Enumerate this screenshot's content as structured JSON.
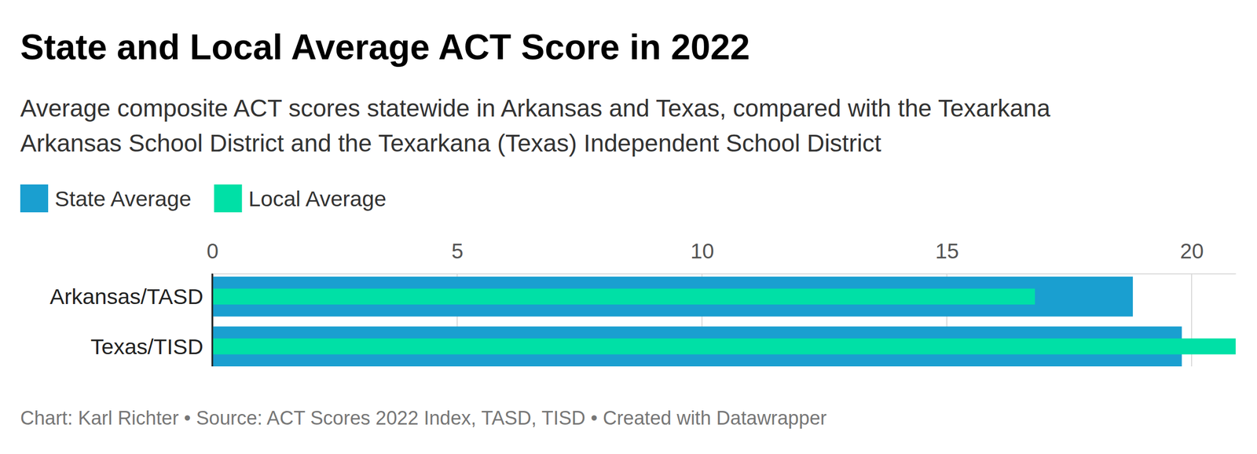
{
  "chart_data": {
    "type": "bar",
    "orientation": "horizontal",
    "title": "State and Local Average ACT Score in 2022",
    "subtitle": [
      "Average composite ACT scores statewide in Arkansas and Texas, compared with the Texarkana",
      "Arkansas School District and the Texarkana (Texas) Independent School District"
    ],
    "categories": [
      "Arkansas/TASD",
      "Texas/TISD"
    ],
    "series": [
      {
        "name": "State Average",
        "color": "#1a9fd0",
        "values": [
          18.8,
          19.8
        ]
      },
      {
        "name": "Local Average",
        "color": "#00e0a6",
        "values": [
          16.8,
          20.9
        ]
      }
    ],
    "xlim": [
      0,
      20.9
    ],
    "xticks": [
      0,
      5,
      10,
      15,
      20
    ],
    "grid": true,
    "legend": "top-left",
    "source": "Chart: Karl Richter • Source: ACT Scores 2022 Index, TASD, TISD • Created with Datawrapper"
  }
}
